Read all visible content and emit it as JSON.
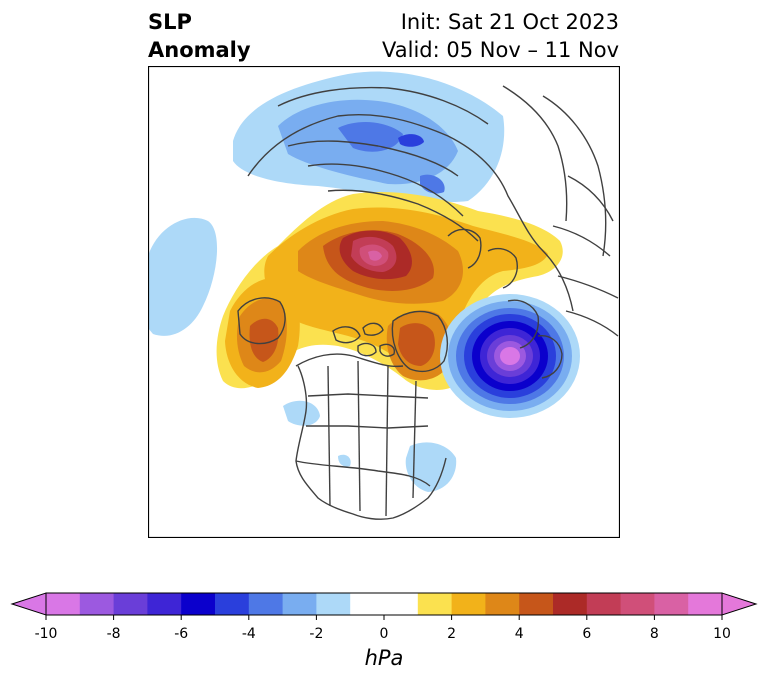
{
  "header": {
    "title_line1": "SLP",
    "title_line2": "Anomaly",
    "init": "Init: Sat 21 Oct 2023",
    "valid": "Valid: 05 Nov – 11 Nov"
  },
  "colorbar": {
    "unit": "hPa",
    "ticks": [
      "-10",
      "-8",
      "-6",
      "-4",
      "-2",
      "0",
      "2",
      "4",
      "6",
      "8",
      "10"
    ],
    "colors": [
      "#d977e6",
      "#9c59e0",
      "#6a3ed8",
      "#3e25d6",
      "#0b00cc",
      "#2a3fdc",
      "#4e78e6",
      "#79adf0",
      "#add9f8",
      "#ffffff",
      "#ffffff",
      "#fbe14f",
      "#f2b21a",
      "#de8718",
      "#c6561a",
      "#ac2a27",
      "#c23d56",
      "#d04f79",
      "#d961a4",
      "#e478da"
    ]
  },
  "map_anomalies": [
    {
      "name": "negative-low-atlantic",
      "sign": "negative",
      "peak_hpa": -10
    },
    {
      "name": "positive-high-arctic",
      "sign": "positive",
      "peak_hpa": 9
    },
    {
      "name": "positive-high-alaska",
      "sign": "positive",
      "peak_hpa": 5
    },
    {
      "name": "positive-high-greenland",
      "sign": "positive",
      "peak_hpa": 5
    },
    {
      "name": "negative-eurasia",
      "sign": "negative",
      "peak_hpa": -4
    },
    {
      "name": "negative-pacific",
      "sign": "negative",
      "peak_hpa": -2
    }
  ]
}
